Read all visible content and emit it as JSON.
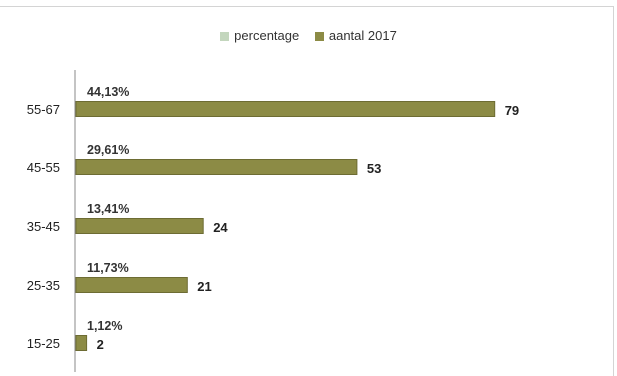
{
  "chart_data": {
    "type": "bar",
    "orientation": "horizontal",
    "title": "",
    "xlabel": "",
    "ylabel": "",
    "categories": [
      "55-67",
      "45-55",
      "35-45",
      "25-35",
      "15-25"
    ],
    "series": [
      {
        "name": "percentage",
        "values": [
          "44,13%",
          "29,61%",
          "13,41%",
          "11,73%",
          "1,12%"
        ],
        "color": "#c3d6bd"
      },
      {
        "name": "aantal 2017",
        "values": [
          79,
          53,
          24,
          21,
          2
        ],
        "color": "#8c8b45"
      }
    ],
    "xlim": [
      0,
      80
    ],
    "grid": false,
    "legend": "top"
  }
}
